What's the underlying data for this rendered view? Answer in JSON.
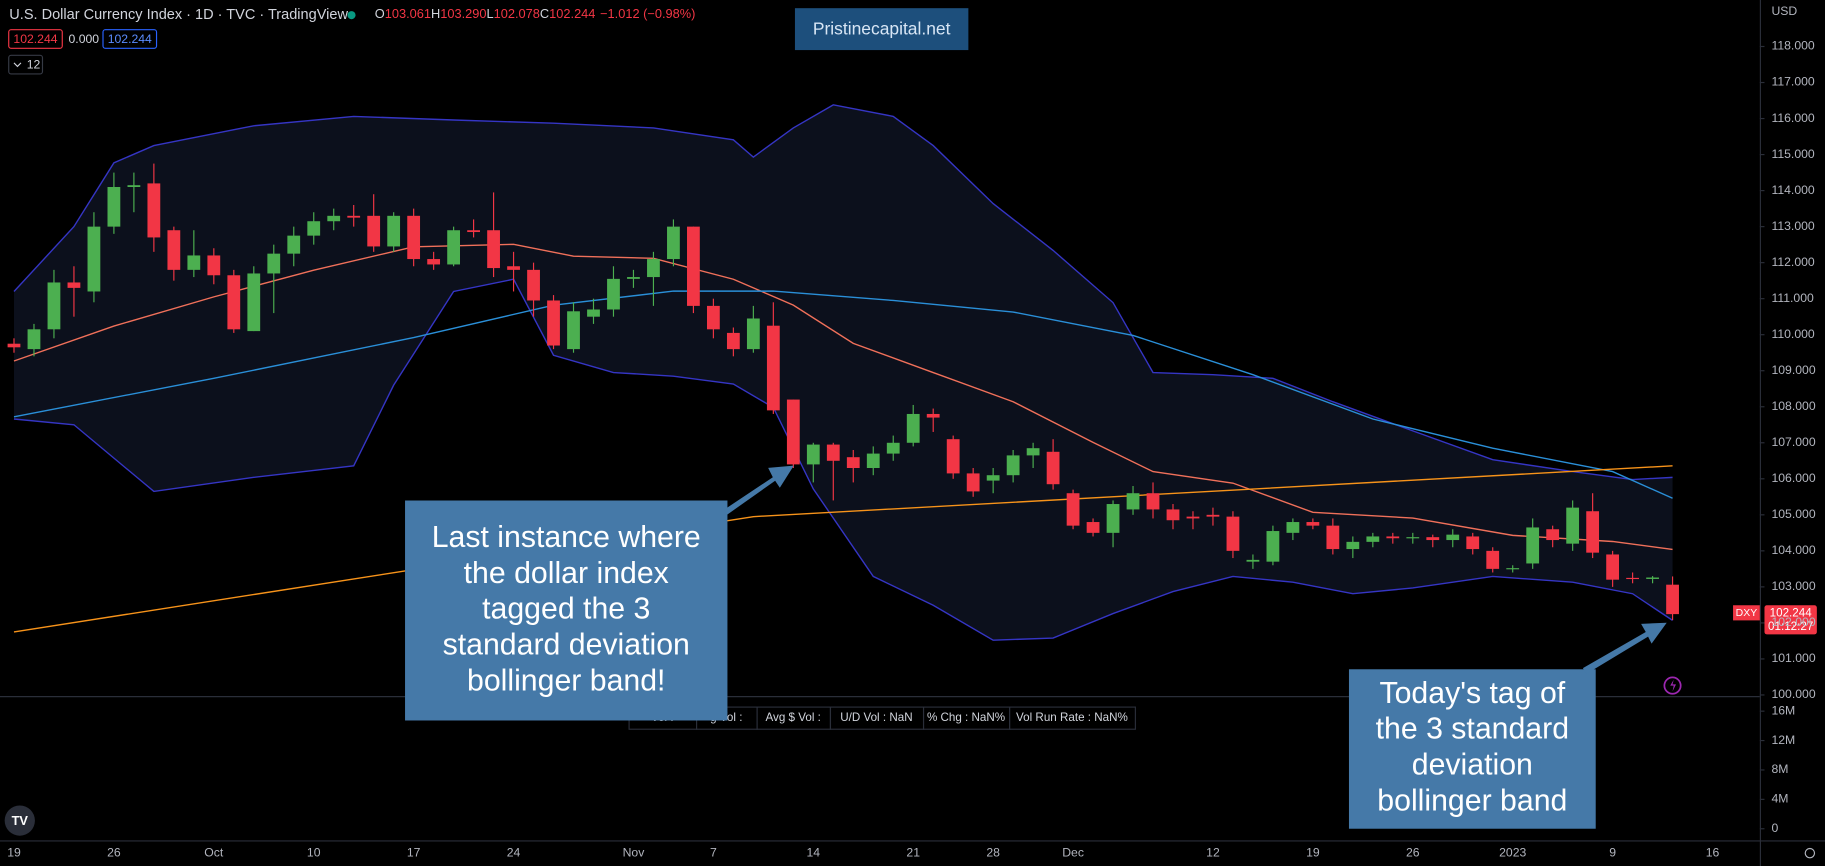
{
  "header": {
    "title": "U.S. Dollar Currency Index · 1D · TVC · TradingView",
    "ohlc": [
      {
        "key": "O",
        "value": "103.061"
      },
      {
        "key": "H",
        "value": "103.290"
      },
      {
        "key": "L",
        "value": "102.078"
      },
      {
        "key": "C",
        "value": "102.244"
      }
    ],
    "change": "−1.012 (−0.98%)",
    "indicator_values": [
      "102.244",
      "0.000",
      "102.244"
    ],
    "interval_badge": "12",
    "watermark": "Pristinecapital.net",
    "currency": "USD"
  },
  "price_label": {
    "symbol": "DXY",
    "price": "102.244",
    "countdown": "01:12:27"
  },
  "volume_legend": [
    "Vol :",
    "g Vol :",
    "Avg $ Vol :",
    "U/D Vol : NaN",
    "% Chg : NaN%",
    "Vol Run Rate : NaN%"
  ],
  "annotations": [
    {
      "lines": [
        "Last instance where",
        "the dollar index",
        "tagged the 3",
        "standard deviation",
        "bollinger band!"
      ]
    },
    {
      "lines": [
        "Today's tag of",
        "the 3 standard",
        "deviation",
        "bollinger band"
      ]
    }
  ],
  "chart_data": {
    "type": "candlestick",
    "categories": [
      "19",
      null,
      null,
      null,
      null,
      "26",
      null,
      null,
      null,
      null,
      "Oct",
      null,
      null,
      null,
      null,
      "10",
      null,
      null,
      null,
      null,
      "17",
      null,
      null,
      null,
      null,
      "24",
      null,
      null,
      null,
      null,
      null,
      "Nov",
      null,
      null,
      null,
      "7",
      null,
      null,
      null,
      null,
      "14",
      null,
      null,
      null,
      null,
      "21",
      null,
      null,
      null,
      "28",
      null,
      null,
      null,
      "Dec",
      null,
      null,
      null,
      null,
      null,
      null,
      "12",
      null,
      null,
      null,
      null,
      "19",
      null,
      null,
      null,
      null,
      "26",
      null,
      null,
      null,
      null,
      "2023",
      null,
      null,
      null,
      null,
      "9",
      null,
      null,
      null,
      null,
      "16"
    ],
    "open": [
      109.75,
      109.6,
      110.15,
      111.45,
      111.2,
      113.0,
      114.1,
      114.2,
      112.9,
      111.8,
      112.2,
      111.65,
      110.1,
      111.7,
      112.25,
      112.75,
      113.15,
      113.3,
      113.3,
      112.45,
      113.3,
      112.1,
      111.95,
      112.9,
      112.9,
      111.9,
      111.8,
      110.95,
      109.6,
      110.5,
      110.7,
      111.55,
      111.6,
      112.1,
      113.0,
      110.8,
      110.05,
      109.6,
      110.25,
      108.2,
      106.4,
      106.95,
      106.6,
      106.3,
      106.7,
      107.0,
      107.8,
      107.1,
      106.15,
      105.95,
      106.1,
      106.65,
      106.75,
      105.6,
      104.8,
      104.5,
      105.15,
      105.6,
      105.15,
      104.95,
      105.0,
      104.95,
      103.7,
      103.7,
      104.5,
      104.8,
      104.7,
      104.05,
      104.25,
      104.4,
      104.35,
      104.38,
      104.3,
      104.4,
      104.0,
      103.5,
      103.65,
      104.6,
      104.2,
      105.1,
      103.9,
      103.25,
      103.22,
      103.061,
      null,
      null
    ],
    "high": [
      109.9,
      110.3,
      111.8,
      111.9,
      113.4,
      114.5,
      114.5,
      114.75,
      113.0,
      112.9,
      112.4,
      111.8,
      111.9,
      112.5,
      113.0,
      113.4,
      113.5,
      113.6,
      113.9,
      113.4,
      113.5,
      112.3,
      113.0,
      113.2,
      113.95,
      112.3,
      112.0,
      111.1,
      110.9,
      111.0,
      111.9,
      111.8,
      112.3,
      113.2,
      113.0,
      111.0,
      110.2,
      110.8,
      110.9,
      108.2,
      107.0,
      107.0,
      106.8,
      106.9,
      107.2,
      108.05,
      107.95,
      107.2,
      106.3,
      106.3,
      106.8,
      107.0,
      107.1,
      105.7,
      104.9,
      105.4,
      105.8,
      105.9,
      105.3,
      105.1,
      105.2,
      105.1,
      103.9,
      104.7,
      104.9,
      104.9,
      104.9,
      104.4,
      104.5,
      104.5,
      104.5,
      104.45,
      104.6,
      104.5,
      104.1,
      103.6,
      104.9,
      104.7,
      105.4,
      105.6,
      104.0,
      103.4,
      103.3,
      103.29,
      null,
      null
    ],
    "low": [
      109.5,
      109.4,
      109.9,
      110.5,
      110.9,
      112.8,
      113.4,
      112.3,
      111.5,
      111.6,
      111.4,
      110.05,
      110.1,
      110.6,
      111.9,
      112.5,
      112.9,
      113.0,
      112.3,
      112.3,
      111.9,
      111.8,
      111.9,
      112.7,
      111.6,
      111.2,
      110.5,
      109.6,
      109.5,
      110.3,
      110.5,
      111.3,
      110.8,
      111.9,
      110.6,
      109.9,
      109.4,
      109.5,
      107.8,
      106.3,
      105.9,
      105.4,
      105.9,
      106.1,
      106.5,
      106.9,
      107.3,
      106.0,
      105.5,
      105.6,
      105.9,
      106.3,
      105.7,
      104.6,
      104.4,
      104.1,
      105.0,
      104.9,
      104.6,
      104.6,
      104.7,
      103.8,
      103.5,
      103.6,
      104.3,
      104.6,
      103.9,
      103.8,
      104.1,
      104.2,
      104.2,
      104.1,
      104.1,
      103.9,
      103.4,
      103.4,
      103.5,
      104.1,
      104.0,
      103.8,
      103.0,
      103.1,
      103.1,
      102.078,
      null,
      null
    ],
    "close": [
      109.65,
      110.15,
      111.45,
      111.3,
      113.0,
      114.1,
      114.15,
      112.7,
      111.8,
      112.2,
      111.65,
      110.15,
      111.7,
      112.25,
      112.75,
      113.15,
      113.3,
      113.25,
      112.45,
      113.3,
      112.1,
      111.95,
      112.9,
      112.85,
      111.85,
      111.8,
      110.95,
      109.7,
      110.65,
      110.7,
      111.55,
      111.6,
      112.1,
      113.0,
      110.8,
      110.15,
      109.6,
      110.45,
      107.9,
      106.4,
      106.95,
      106.5,
      106.3,
      106.7,
      107.0,
      107.8,
      107.7,
      106.15,
      105.65,
      106.1,
      106.65,
      106.85,
      105.85,
      104.7,
      104.5,
      105.3,
      105.6,
      105.15,
      104.85,
      104.9,
      104.95,
      104.0,
      103.75,
      104.55,
      104.8,
      104.7,
      104.05,
      104.25,
      104.4,
      104.35,
      104.38,
      104.3,
      104.45,
      104.05,
      103.5,
      103.52,
      104.65,
      104.3,
      105.2,
      103.95,
      103.2,
      103.22,
      103.26,
      102.244,
      null,
      null
    ],
    "up_color": "#4caf50",
    "down_color": "#f23645",
    "overlays": [
      {
        "color": "#3535c4",
        "x": [
          0,
          3,
          5,
          7,
          12,
          17,
          22,
          27,
          32,
          36,
          37,
          39,
          41,
          44,
          46,
          49,
          52,
          55,
          57,
          60,
          63,
          66,
          70,
          74,
          78,
          81,
          83
        ],
        "values": [
          111.2,
          113.0,
          114.77,
          115.25,
          115.8,
          116.06,
          115.96,
          115.87,
          115.74,
          115.41,
          114.93,
          115.74,
          116.38,
          116.06,
          115.25,
          113.64,
          112.34,
          110.89,
          108.95,
          108.89,
          108.79,
          108.14,
          107.33,
          106.53,
          106.2,
          105.98,
          106.04
        ]
      },
      {
        "color": "#3535c4",
        "x": [
          0,
          3,
          7,
          12,
          17,
          19,
          22,
          25,
          27,
          30,
          33,
          36,
          38,
          40,
          43,
          46,
          49,
          52,
          55,
          58,
          61,
          64,
          67,
          70,
          74,
          78,
          81,
          83
        ],
        "values": [
          107.66,
          107.5,
          105.65,
          106.04,
          106.36,
          108.6,
          111.2,
          111.54,
          109.43,
          108.95,
          108.85,
          108.63,
          107.98,
          105.72,
          103.29,
          102.49,
          101.52,
          101.58,
          102.26,
          102.87,
          103.29,
          103.13,
          102.81,
          102.97,
          103.29,
          103.13,
          102.81,
          102.07
        ]
      },
      {
        "color": "#f0705a",
        "x": [
          0,
          5,
          10,
          15,
          20,
          25,
          28,
          32,
          36,
          39,
          42,
          46,
          50,
          54,
          57,
          61,
          65,
          70,
          75,
          80,
          83
        ],
        "values": [
          109.27,
          110.24,
          111.05,
          111.79,
          112.44,
          112.51,
          112.18,
          112.12,
          111.54,
          110.82,
          109.76,
          108.95,
          108.14,
          107.01,
          106.2,
          105.88,
          105.07,
          104.91,
          104.43,
          104.26,
          104.04
        ]
      },
      {
        "color": "#2a8fd8",
        "x": [
          0,
          10,
          20,
          27,
          33,
          38,
          44,
          50,
          56,
          62,
          68,
          74,
          80,
          83
        ],
        "values": [
          107.72,
          108.79,
          109.92,
          110.82,
          111.21,
          111.21,
          110.95,
          110.63,
          109.98,
          108.89,
          107.66,
          106.85,
          106.2,
          105.46
        ]
      },
      {
        "color": "#f7931a",
        "x": [
          0,
          37,
          83
        ],
        "values": [
          101.75,
          104.95,
          106.36
        ]
      }
    ],
    "xlim": [
      -0.7,
      87.25
    ],
    "ylim": [
      99.97,
      119.29
    ],
    "yticks": [
      {
        "value": 100,
        "label": "100.000"
      },
      {
        "value": 101,
        "label": "101.000"
      },
      {
        "value": 102,
        "label": "102.000"
      },
      {
        "value": 103,
        "label": "103.000"
      },
      {
        "value": 104,
        "label": "104.000"
      },
      {
        "value": 105,
        "label": "105.000"
      },
      {
        "value": 106,
        "label": "106.000"
      },
      {
        "value": 107,
        "label": "107.000"
      },
      {
        "value": 108,
        "label": "108.000"
      },
      {
        "value": 109,
        "label": "109.000"
      },
      {
        "value": 110,
        "label": "110.000"
      },
      {
        "value": 111,
        "label": "111.000"
      },
      {
        "value": 112,
        "label": "112.000"
      },
      {
        "value": 113,
        "label": "113.000"
      },
      {
        "value": 114,
        "label": "114.000"
      },
      {
        "value": 115,
        "label": "115.000"
      },
      {
        "value": 116,
        "label": "116.000"
      },
      {
        "value": 117,
        "label": "117.000"
      },
      {
        "value": 118,
        "label": "118.000"
      }
    ],
    "volume_ylim": [
      -1580000,
      17740000
    ],
    "volume_ticks": [
      0,
      {
        "value": 4000000,
        "label": "4M"
      },
      {
        "value": 8000000,
        "label": "8M"
      },
      {
        "value": 12000000,
        "label": "12M"
      },
      {
        "value": 16000000,
        "label": "16M"
      }
    ]
  }
}
